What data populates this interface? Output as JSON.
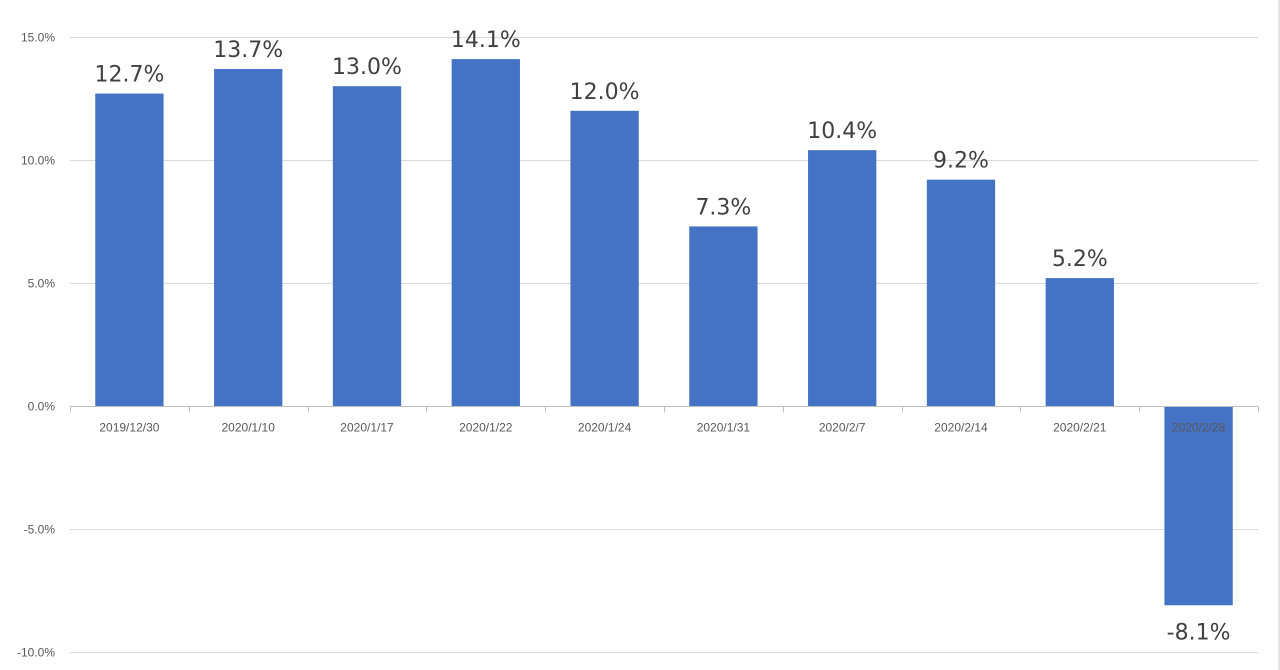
{
  "chart_data": {
    "type": "bar",
    "title": "",
    "xlabel": "",
    "ylabel": "",
    "categories": [
      "2019/12/30",
      "2020/1/10",
      "2020/1/17",
      "2020/1/22",
      "2020/1/24",
      "2020/1/31",
      "2020/2/7",
      "2020/2/14",
      "2020/2/21",
      "2020/2/28"
    ],
    "values": [
      12.7,
      13.7,
      13.0,
      14.1,
      12.0,
      7.3,
      10.4,
      9.2,
      5.2,
      -8.1
    ],
    "data_labels": [
      "12.7%",
      "13.7%",
      "13.0%",
      "14.1%",
      "12.0%",
      "7.3%",
      "10.4%",
      "9.2%",
      "5.2%",
      "-8.1%"
    ],
    "ylim": [
      -10,
      15
    ],
    "y_ticks": [
      15,
      10,
      5,
      0,
      -5,
      -10
    ],
    "y_tick_labels": [
      "15.0%",
      "10.0%",
      "5.0%",
      "0.0%",
      "-5.0%",
      "-10.0%"
    ],
    "grid": true,
    "legend": "none",
    "bar_color": "#4472C4"
  }
}
